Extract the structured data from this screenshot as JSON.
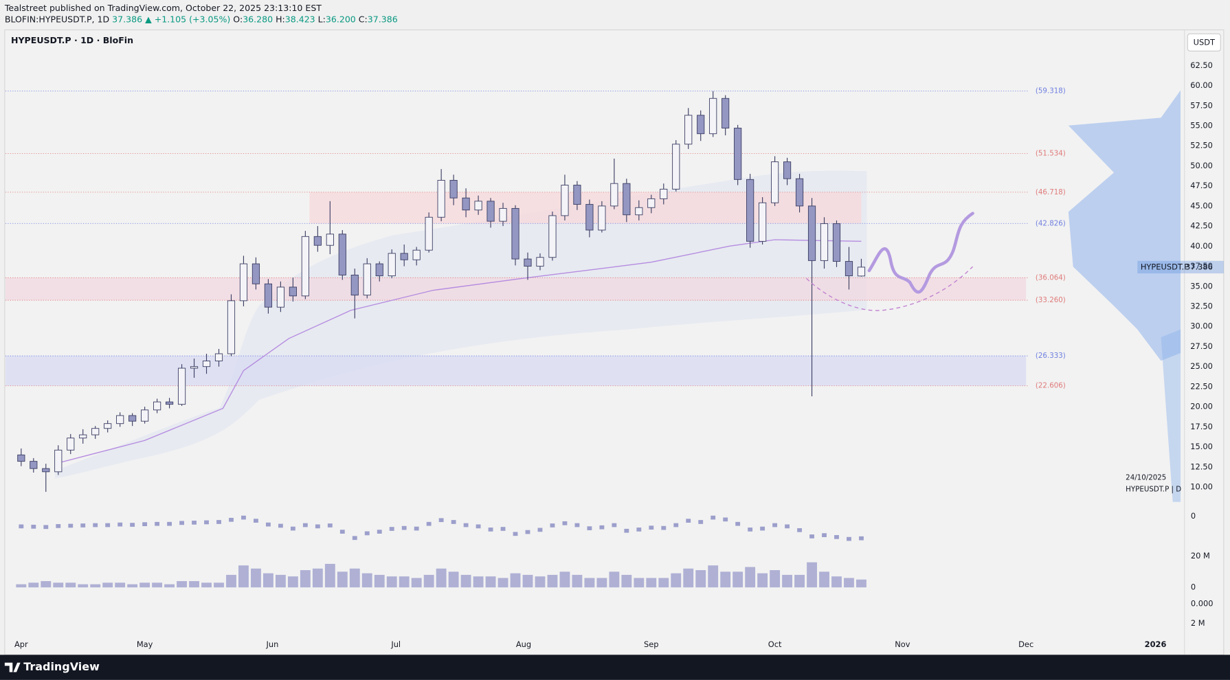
{
  "header": {
    "author": "Tealstreet published on TradingView.com, October 22, 2025 23:13:10 EST",
    "symbol": "BLOFIN:HYPEUSDT.P, 1D",
    "last": "37.386",
    "change": "▲ +1.105 (+3.05%)",
    "ohlc": [
      {
        "key": "O:",
        "value": "36.280"
      },
      {
        "key": "H:",
        "value": "38.423"
      },
      {
        "key": "L:",
        "value": "36.200"
      },
      {
        "key": "C:",
        "value": "37.386"
      }
    ]
  },
  "footer": {
    "brand": "TradingView"
  },
  "chart_data": {
    "type": "candlestick",
    "title": "HYPEUSDT.P · 1D · BloFin",
    "currency": "USDT",
    "price_tag": {
      "name": "HYPEUSDT.P",
      "value": 37.386
    },
    "watermark": [
      "24/10/2025",
      "HYPEUSDT.P | D"
    ],
    "x": [
      "2025-04-01",
      "2025-04-04",
      "2025-04-07",
      "2025-04-10",
      "2025-04-13",
      "2025-04-16",
      "2025-04-19",
      "2025-04-22",
      "2025-04-25",
      "2025-04-28",
      "2025-05-01",
      "2025-05-04",
      "2025-05-07",
      "2025-05-10",
      "2025-05-13",
      "2025-05-16",
      "2025-05-19",
      "2025-05-22",
      "2025-05-25",
      "2025-05-28",
      "2025-05-31",
      "2025-06-03",
      "2025-06-06",
      "2025-06-09",
      "2025-06-12",
      "2025-06-15",
      "2025-06-18",
      "2025-06-21",
      "2025-06-24",
      "2025-06-27",
      "2025-06-30",
      "2025-07-03",
      "2025-07-06",
      "2025-07-09",
      "2025-07-12",
      "2025-07-15",
      "2025-07-18",
      "2025-07-21",
      "2025-07-24",
      "2025-07-27",
      "2025-07-30",
      "2025-08-02",
      "2025-08-05",
      "2025-08-08",
      "2025-08-11",
      "2025-08-14",
      "2025-08-17",
      "2025-08-20",
      "2025-08-23",
      "2025-08-26",
      "2025-08-29",
      "2025-09-01",
      "2025-09-04",
      "2025-09-07",
      "2025-09-10",
      "2025-09-13",
      "2025-09-16",
      "2025-09-19",
      "2025-09-22",
      "2025-09-25",
      "2025-09-28",
      "2025-10-01",
      "2025-10-04",
      "2025-10-07",
      "2025-10-10",
      "2025-10-13",
      "2025-10-16",
      "2025-10-19",
      "2025-10-22"
    ],
    "open": [
      14.0,
      13.2,
      12.3,
      11.9,
      14.6,
      16.1,
      16.5,
      17.3,
      17.9,
      18.9,
      18.2,
      19.6,
      20.6,
      20.3,
      24.8,
      25.0,
      25.7,
      26.6,
      33.2,
      37.8,
      35.3,
      32.4,
      34.9,
      33.8,
      41.2,
      40.1,
      41.5,
      36.4,
      33.9,
      37.8,
      36.3,
      39.1,
      38.3,
      39.5,
      43.6,
      48.2,
      46.0,
      44.5,
      45.6,
      43.1,
      44.7,
      38.4,
      37.5,
      38.6,
      43.8,
      47.6,
      45.2,
      42.0,
      45.0,
      47.8,
      43.9,
      44.8,
      45.9,
      47.1,
      52.7,
      56.3,
      54.0,
      58.4,
      54.7,
      48.3,
      40.6,
      45.4,
      50.5,
      48.4,
      45.0,
      38.2,
      42.8,
      38.1,
      36.28
    ],
    "high": [
      14.8,
      13.6,
      12.9,
      15.2,
      16.6,
      17.2,
      17.6,
      18.3,
      19.3,
      19.2,
      20.0,
      21.0,
      21.1,
      25.3,
      26.0,
      26.6,
      27.2,
      34.0,
      38.8,
      38.6,
      35.9,
      35.6,
      36.1,
      41.9,
      42.5,
      45.6,
      42.0,
      37.2,
      38.5,
      38.1,
      39.6,
      40.2,
      39.9,
      44.2,
      49.6,
      48.9,
      47.2,
      46.3,
      46.0,
      45.4,
      45.1,
      39.2,
      39.1,
      44.3,
      48.9,
      48.1,
      45.8,
      45.6,
      50.9,
      48.4,
      45.7,
      46.4,
      47.8,
      53.2,
      57.2,
      56.9,
      59.3,
      58.8,
      55.1,
      49.0,
      46.1,
      51.2,
      51.0,
      49.0,
      46.0,
      43.6,
      43.2,
      39.9,
      38.423
    ],
    "low": [
      12.6,
      11.8,
      9.4,
      11.5,
      14.1,
      15.4,
      16.0,
      16.8,
      17.5,
      17.6,
      17.9,
      19.2,
      19.8,
      20.1,
      23.6,
      24.1,
      25.0,
      26.3,
      32.5,
      34.6,
      31.6,
      31.8,
      33.1,
      33.4,
      39.3,
      39.0,
      35.8,
      31.0,
      33.5,
      35.6,
      36.0,
      37.5,
      37.6,
      39.2,
      43.1,
      45.1,
      43.6,
      43.9,
      42.3,
      42.5,
      37.6,
      35.8,
      37.0,
      38.2,
      43.2,
      44.5,
      41.1,
      41.7,
      44.6,
      43.0,
      43.2,
      44.1,
      45.2,
      46.8,
      52.1,
      53.1,
      53.6,
      53.8,
      47.6,
      39.8,
      40.2,
      45.0,
      47.6,
      44.2,
      21.3,
      37.2,
      37.4,
      34.6,
      36.2
    ],
    "close": [
      13.2,
      12.3,
      11.9,
      14.6,
      16.1,
      16.5,
      17.3,
      17.9,
      18.9,
      18.2,
      19.6,
      20.6,
      20.3,
      24.8,
      25.0,
      25.7,
      26.6,
      33.2,
      37.8,
      35.3,
      32.4,
      34.9,
      33.8,
      41.2,
      40.1,
      41.5,
      36.4,
      33.9,
      37.8,
      36.3,
      39.1,
      38.3,
      39.5,
      43.6,
      48.2,
      46.0,
      44.5,
      45.6,
      43.1,
      44.7,
      38.4,
      37.5,
      38.6,
      43.8,
      47.6,
      45.2,
      42.0,
      45.0,
      47.8,
      43.9,
      44.8,
      45.9,
      47.1,
      52.7,
      56.3,
      54.0,
      58.4,
      54.7,
      48.3,
      40.6,
      45.4,
      50.5,
      48.4,
      45.0,
      38.2,
      42.8,
      38.1,
      36.3,
      37.386
    ],
    "volume": [
      2,
      3,
      4,
      3,
      3,
      2,
      2,
      3,
      3,
      2,
      3,
      3,
      2,
      4,
      4,
      3,
      3,
      8,
      14,
      12,
      9,
      8,
      7,
      11,
      12,
      15,
      10,
      12,
      9,
      8,
      7,
      7,
      6,
      8,
      12,
      10,
      8,
      7,
      7,
      6,
      9,
      8,
      7,
      8,
      10,
      8,
      6,
      6,
      10,
      8,
      6,
      6,
      6,
      9,
      12,
      11,
      14,
      10,
      10,
      13,
      9,
      11,
      8,
      8,
      16,
      10,
      7,
      6,
      5
    ],
    "volume_color": "#a3a5cf",
    "oscillator": [
      0.2,
      0.1,
      0.0,
      0.3,
      0.4,
      0.5,
      0.6,
      0.6,
      0.8,
      0.7,
      0.9,
      1.0,
      1.0,
      1.3,
      1.4,
      1.5,
      1.6,
      2.3,
      3.0,
      2.0,
      0.8,
      0.4,
      -0.5,
      0.6,
      0.2,
      0.5,
      -1.5,
      -3.5,
      -2.0,
      -1.5,
      -0.6,
      -0.3,
      -0.5,
      1.0,
      2.2,
      1.6,
      0.6,
      0.2,
      -0.8,
      -0.6,
      -2.2,
      -1.6,
      -0.9,
      0.5,
      1.2,
      0.6,
      -0.4,
      -0.1,
      0.6,
      -1.2,
      -0.8,
      -0.2,
      -0.3,
      0.6,
      2.0,
      1.6,
      3.0,
      2.4,
      1.0,
      -0.8,
      -0.5,
      0.6,
      0.2,
      -1.0,
      -3.0,
      -2.6,
      -3.2,
      -3.8,
      -3.6
    ],
    "oscillator_color": "#9c9fcb",
    "ma": {
      "x": [
        "2025-04-10",
        "2025-05-01",
        "2025-05-20",
        "2025-05-25",
        "2025-06-05",
        "2025-06-20",
        "2025-07-10",
        "2025-08-01",
        "2025-09-01",
        "2025-09-20",
        "2025-10-01",
        "2025-10-22"
      ],
      "values": [
        13.0,
        15.8,
        19.8,
        24.5,
        28.5,
        32.0,
        34.5,
        36.0,
        38.0,
        40.0,
        40.8,
        40.6
      ],
      "color": "#b58be0"
    },
    "levels": [
      {
        "value": 59.318,
        "label": "(59.318)",
        "color": "#6f7fe0"
      },
      {
        "value": 51.534,
        "label": "(51.534)",
        "color": "#e07a7a"
      },
      {
        "value": 46.718,
        "label": "(46.718)",
        "color": "#e07a7a"
      },
      {
        "value": 42.826,
        "label": "(42.826)",
        "color": "#6f7fe0"
      },
      {
        "value": 36.064,
        "label": "(36.064)",
        "color": "#e07a7a"
      },
      {
        "value": 33.26,
        "label": "(33.260)",
        "color": "#e07a7a"
      },
      {
        "value": 26.333,
        "label": "(26.333)",
        "color": "#6f7fe0"
      },
      {
        "value": 22.606,
        "label": "(22.606)",
        "color": "#e07a7a"
      }
    ],
    "zones": [
      {
        "from": 42.826,
        "to": 46.718,
        "start": "2025-06-10",
        "end": "2025-10-22",
        "color": "#f6d9dc"
      },
      {
        "from": 33.26,
        "to": 36.064,
        "start": "2025-03-27",
        "end": "2025-12-01",
        "color": "#f1d9e2"
      },
      {
        "from": 22.606,
        "to": 26.333,
        "start": "2025-03-27",
        "end": "2025-12-01",
        "color": "#dadcf2"
      }
    ],
    "ylim": [
      8.2,
      64.3
    ],
    "yticks": [
      {
        "value": 10,
        "label": "10.00"
      },
      {
        "value": 12.5,
        "label": "12.50"
      },
      {
        "value": 15,
        "label": "15.00"
      },
      {
        "value": 17.5,
        "label": "17.50"
      },
      {
        "value": 20,
        "label": "20.00"
      },
      {
        "value": 22.5,
        "label": "22.50"
      },
      {
        "value": 25,
        "label": "25.00"
      },
      {
        "value": 27.5,
        "label": "27.50"
      },
      {
        "value": 30,
        "label": "30.00"
      },
      {
        "value": 32.5,
        "label": "32.50"
      },
      {
        "value": 35,
        "label": "35.00"
      },
      {
        "value": 37.5,
        "label": "37.50"
      },
      {
        "value": 40,
        "label": "40.00"
      },
      {
        "value": 42.5,
        "label": "42.50"
      },
      {
        "value": 45,
        "label": "45.00"
      },
      {
        "value": 47.5,
        "label": "47.50"
      },
      {
        "value": 50,
        "label": "50.00"
      },
      {
        "value": 52.5,
        "label": "52.50"
      },
      {
        "value": 55,
        "label": "55.00"
      },
      {
        "value": 57.5,
        "label": "57.50"
      },
      {
        "value": 60,
        "label": "60.00"
      },
      {
        "value": 62.5,
        "label": "62.50"
      }
    ],
    "xticks": [
      {
        "value": "2025-04-01",
        "label": "Apr"
      },
      {
        "value": "2025-05-01",
        "label": "May"
      },
      {
        "value": "2025-06-01",
        "label": "Jun"
      },
      {
        "value": "2025-07-01",
        "label": "Jul"
      },
      {
        "value": "2025-08-01",
        "label": "Aug"
      },
      {
        "value": "2025-09-01",
        "label": "Sep"
      },
      {
        "value": "2025-10-01",
        "label": "Oct"
      },
      {
        "value": "2025-11-01",
        "label": "Nov"
      },
      {
        "value": "2025-12-01",
        "label": "Dec"
      },
      {
        "value": "2026-01-01",
        "label": "2026"
      }
    ],
    "volume_ticks": [
      {
        "value": 20,
        "label": "20 M"
      },
      {
        "value": 0,
        "label": "0"
      }
    ],
    "oscillator_ticks": [
      {
        "value": 0,
        "label": "0"
      }
    ],
    "empty_pane_ticks": [
      "0.000",
      "2 M"
    ],
    "bull_color": "#f4f4f8",
    "bear_color": "#9497c2",
    "wick_color": "#3c3f64"
  }
}
